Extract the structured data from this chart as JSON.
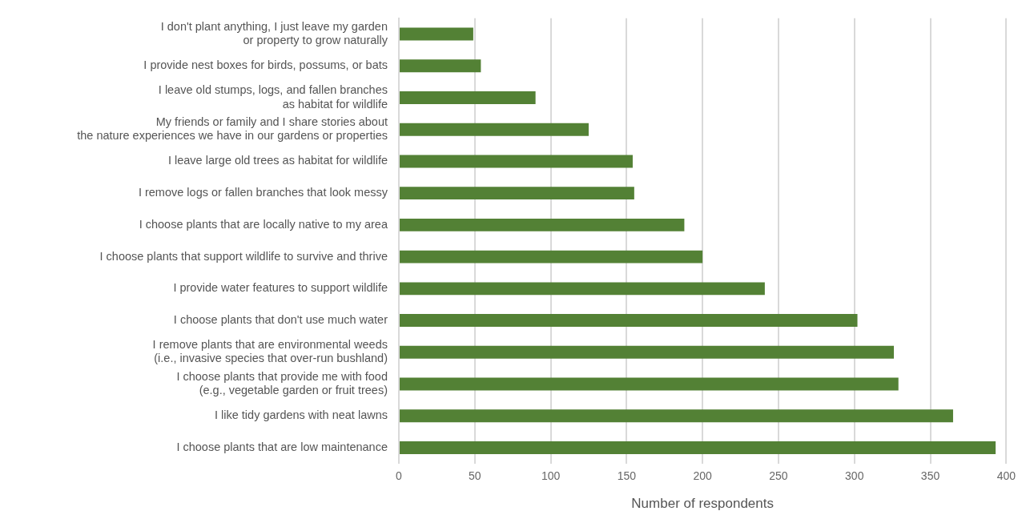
{
  "chart_data": {
    "type": "bar",
    "orientation": "horizontal",
    "xlabel": "Number of respondents",
    "categories": [
      "I don't plant anything, I just leave my garden\nor property to grow naturally",
      "I provide nest boxes for birds, possums, or bats",
      "I leave old stumps, logs, and fallen branches\nas habitat for wildlife",
      "My friends or family and I share stories about\nthe nature experiences we have in our gardens or properties",
      "I leave large old trees as habitat for wildlife",
      "I remove logs or fallen branches that look messy",
      "I choose plants that are locally native to my area",
      "I choose plants that support wildlife to survive and thrive",
      "I provide water features to support wildlife",
      "I choose plants that don't use much water",
      "I remove plants that are environmental weeds\n(i.e., invasive species that over-run bushland)",
      "I choose plants that provide me with food\n(e.g., vegetable garden or fruit trees)",
      "I like tidy gardens with neat lawns",
      "I choose plants that are low maintenance"
    ],
    "values": [
      49,
      54,
      90,
      125,
      154,
      155,
      188,
      200,
      241,
      302,
      326,
      329,
      365,
      393
    ],
    "color": "#538135",
    "xlim": [
      0,
      400
    ],
    "xticks": [
      0,
      50,
      100,
      150,
      200,
      250,
      300,
      350,
      400
    ],
    "grid": "x",
    "legend": false
  }
}
